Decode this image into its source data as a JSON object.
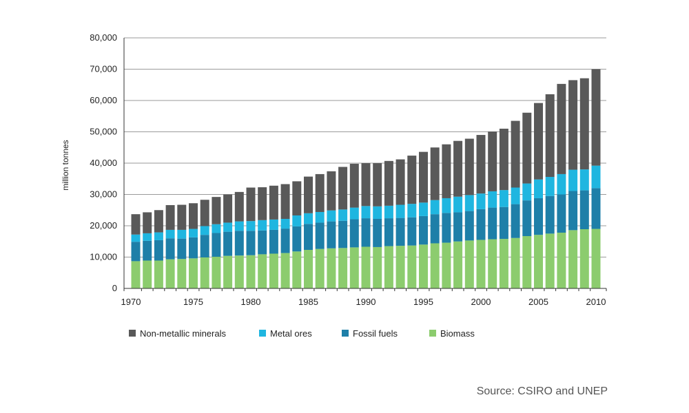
{
  "chart_data": {
    "type": "bar",
    "stacked": true,
    "title": "",
    "xlabel": "",
    "ylabel": "million tonnes",
    "ylim": [
      0,
      80000
    ],
    "yticks": [
      0,
      10000,
      20000,
      30000,
      40000,
      50000,
      60000,
      70000,
      80000
    ],
    "ytick_labels": [
      "0",
      "10,000",
      "20,000",
      "30,000",
      "40,000",
      "50,000",
      "60,000",
      "70,000",
      "80,000"
    ],
    "xtick_labels": [
      "1970",
      "1975",
      "1980",
      "1985",
      "1990",
      "1995",
      "2000",
      "2005",
      "2010"
    ],
    "grid": true,
    "legend_position": "bottom",
    "categories": [
      1970,
      1971,
      1972,
      1973,
      1974,
      1975,
      1976,
      1977,
      1978,
      1979,
      1980,
      1981,
      1982,
      1983,
      1984,
      1985,
      1986,
      1987,
      1988,
      1989,
      1990,
      1991,
      1992,
      1993,
      1994,
      1995,
      1996,
      1997,
      1998,
      1999,
      2000,
      2001,
      2002,
      2003,
      2004,
      2005,
      2006,
      2007,
      2008,
      2009,
      2010
    ],
    "series": [
      {
        "name": "Biomass",
        "color": "#8ccc6e",
        "values": [
          8700,
          8900,
          8900,
          9300,
          9400,
          9600,
          9900,
          10100,
          10400,
          10500,
          10600,
          10900,
          11100,
          11300,
          11800,
          12300,
          12600,
          12800,
          12900,
          13100,
          13300,
          13200,
          13500,
          13600,
          13700,
          14000,
          14400,
          14600,
          15000,
          15300,
          15500,
          15700,
          15800,
          16100,
          16700,
          17100,
          17500,
          17800,
          18600,
          18900,
          19000
        ]
      },
      {
        "name": "Fossil fuels",
        "color": "#1e7fa8",
        "values": [
          6200,
          6300,
          6500,
          6700,
          6500,
          6700,
          7200,
          7600,
          7700,
          7900,
          7800,
          7600,
          7600,
          7800,
          8000,
          8300,
          8400,
          8600,
          8700,
          9000,
          9100,
          9000,
          8900,
          8900,
          9000,
          9100,
          9300,
          9500,
          9300,
          9400,
          9800,
          10100,
          10200,
          10800,
          11400,
          11700,
          12000,
          12200,
          12500,
          12400,
          13000
        ]
      },
      {
        "name": "Metal ores",
        "color": "#1fb6e0",
        "values": [
          2300,
          2400,
          2500,
          2700,
          2800,
          2700,
          2800,
          2800,
          2900,
          3000,
          3100,
          3300,
          3300,
          3100,
          3500,
          3400,
          3400,
          3500,
          3600,
          3700,
          3900,
          4000,
          4000,
          4200,
          4300,
          4300,
          4500,
          4700,
          5000,
          5100,
          5000,
          5200,
          5400,
          5300,
          5400,
          6000,
          6100,
          6500,
          6800,
          6700,
          7200
        ]
      },
      {
        "name": "Non-metallic minerals",
        "color": "#595959",
        "values": [
          6500,
          6700,
          7100,
          7900,
          8000,
          8200,
          8400,
          8700,
          9000,
          9400,
          10700,
          10500,
          10800,
          11100,
          10900,
          11700,
          12100,
          12500,
          13600,
          14000,
          13700,
          13800,
          14300,
          14500,
          15400,
          16200,
          16800,
          17200,
          17800,
          18000,
          18700,
          19100,
          19600,
          21300,
          22600,
          24400,
          26400,
          28800,
          28600,
          29100,
          30800
        ]
      }
    ],
    "legend_order": [
      "Non-metallic minerals",
      "Metal ores",
      "Fossil fuels",
      "Biomass"
    ]
  },
  "source": "Source: CSIRO and UNEP"
}
